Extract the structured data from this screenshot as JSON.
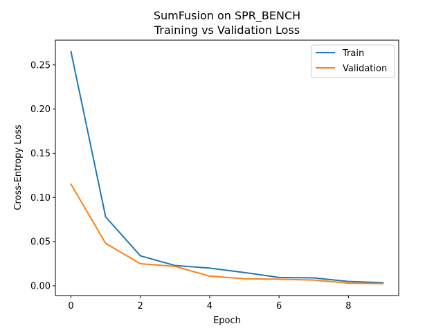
{
  "chart_data": {
    "type": "line",
    "title_line1": "SumFusion on SPR_BENCH",
    "title_line2": "Training vs Validation Loss",
    "xlabel": "Epoch",
    "ylabel": "Cross-Entropy Loss",
    "x": [
      0,
      1,
      2,
      3,
      4,
      5,
      6,
      7,
      8,
      9
    ],
    "xlim": [
      -0.45,
      9.45
    ],
    "ylim": [
      -0.011,
      0.278
    ],
    "xticks": [
      0,
      2,
      4,
      6,
      8
    ],
    "xtick_labels": [
      "0",
      "2",
      "4",
      "6",
      "8"
    ],
    "yticks": [
      0.0,
      0.05,
      0.1,
      0.15,
      0.2,
      0.25
    ],
    "ytick_labels": [
      "0.00",
      "0.05",
      "0.10",
      "0.15",
      "0.20",
      "0.25"
    ],
    "grid": false,
    "legend_position": "top-right",
    "series": [
      {
        "name": "Train",
        "color": "#1f77b4",
        "values": [
          0.265,
          0.078,
          0.034,
          0.023,
          0.02,
          0.015,
          0.0095,
          0.009,
          0.005,
          0.0035
        ]
      },
      {
        "name": "Validation",
        "color": "#ff7f0e",
        "values": [
          0.115,
          0.048,
          0.025,
          0.022,
          0.011,
          0.008,
          0.0075,
          0.0065,
          0.003,
          0.0025
        ]
      }
    ]
  }
}
